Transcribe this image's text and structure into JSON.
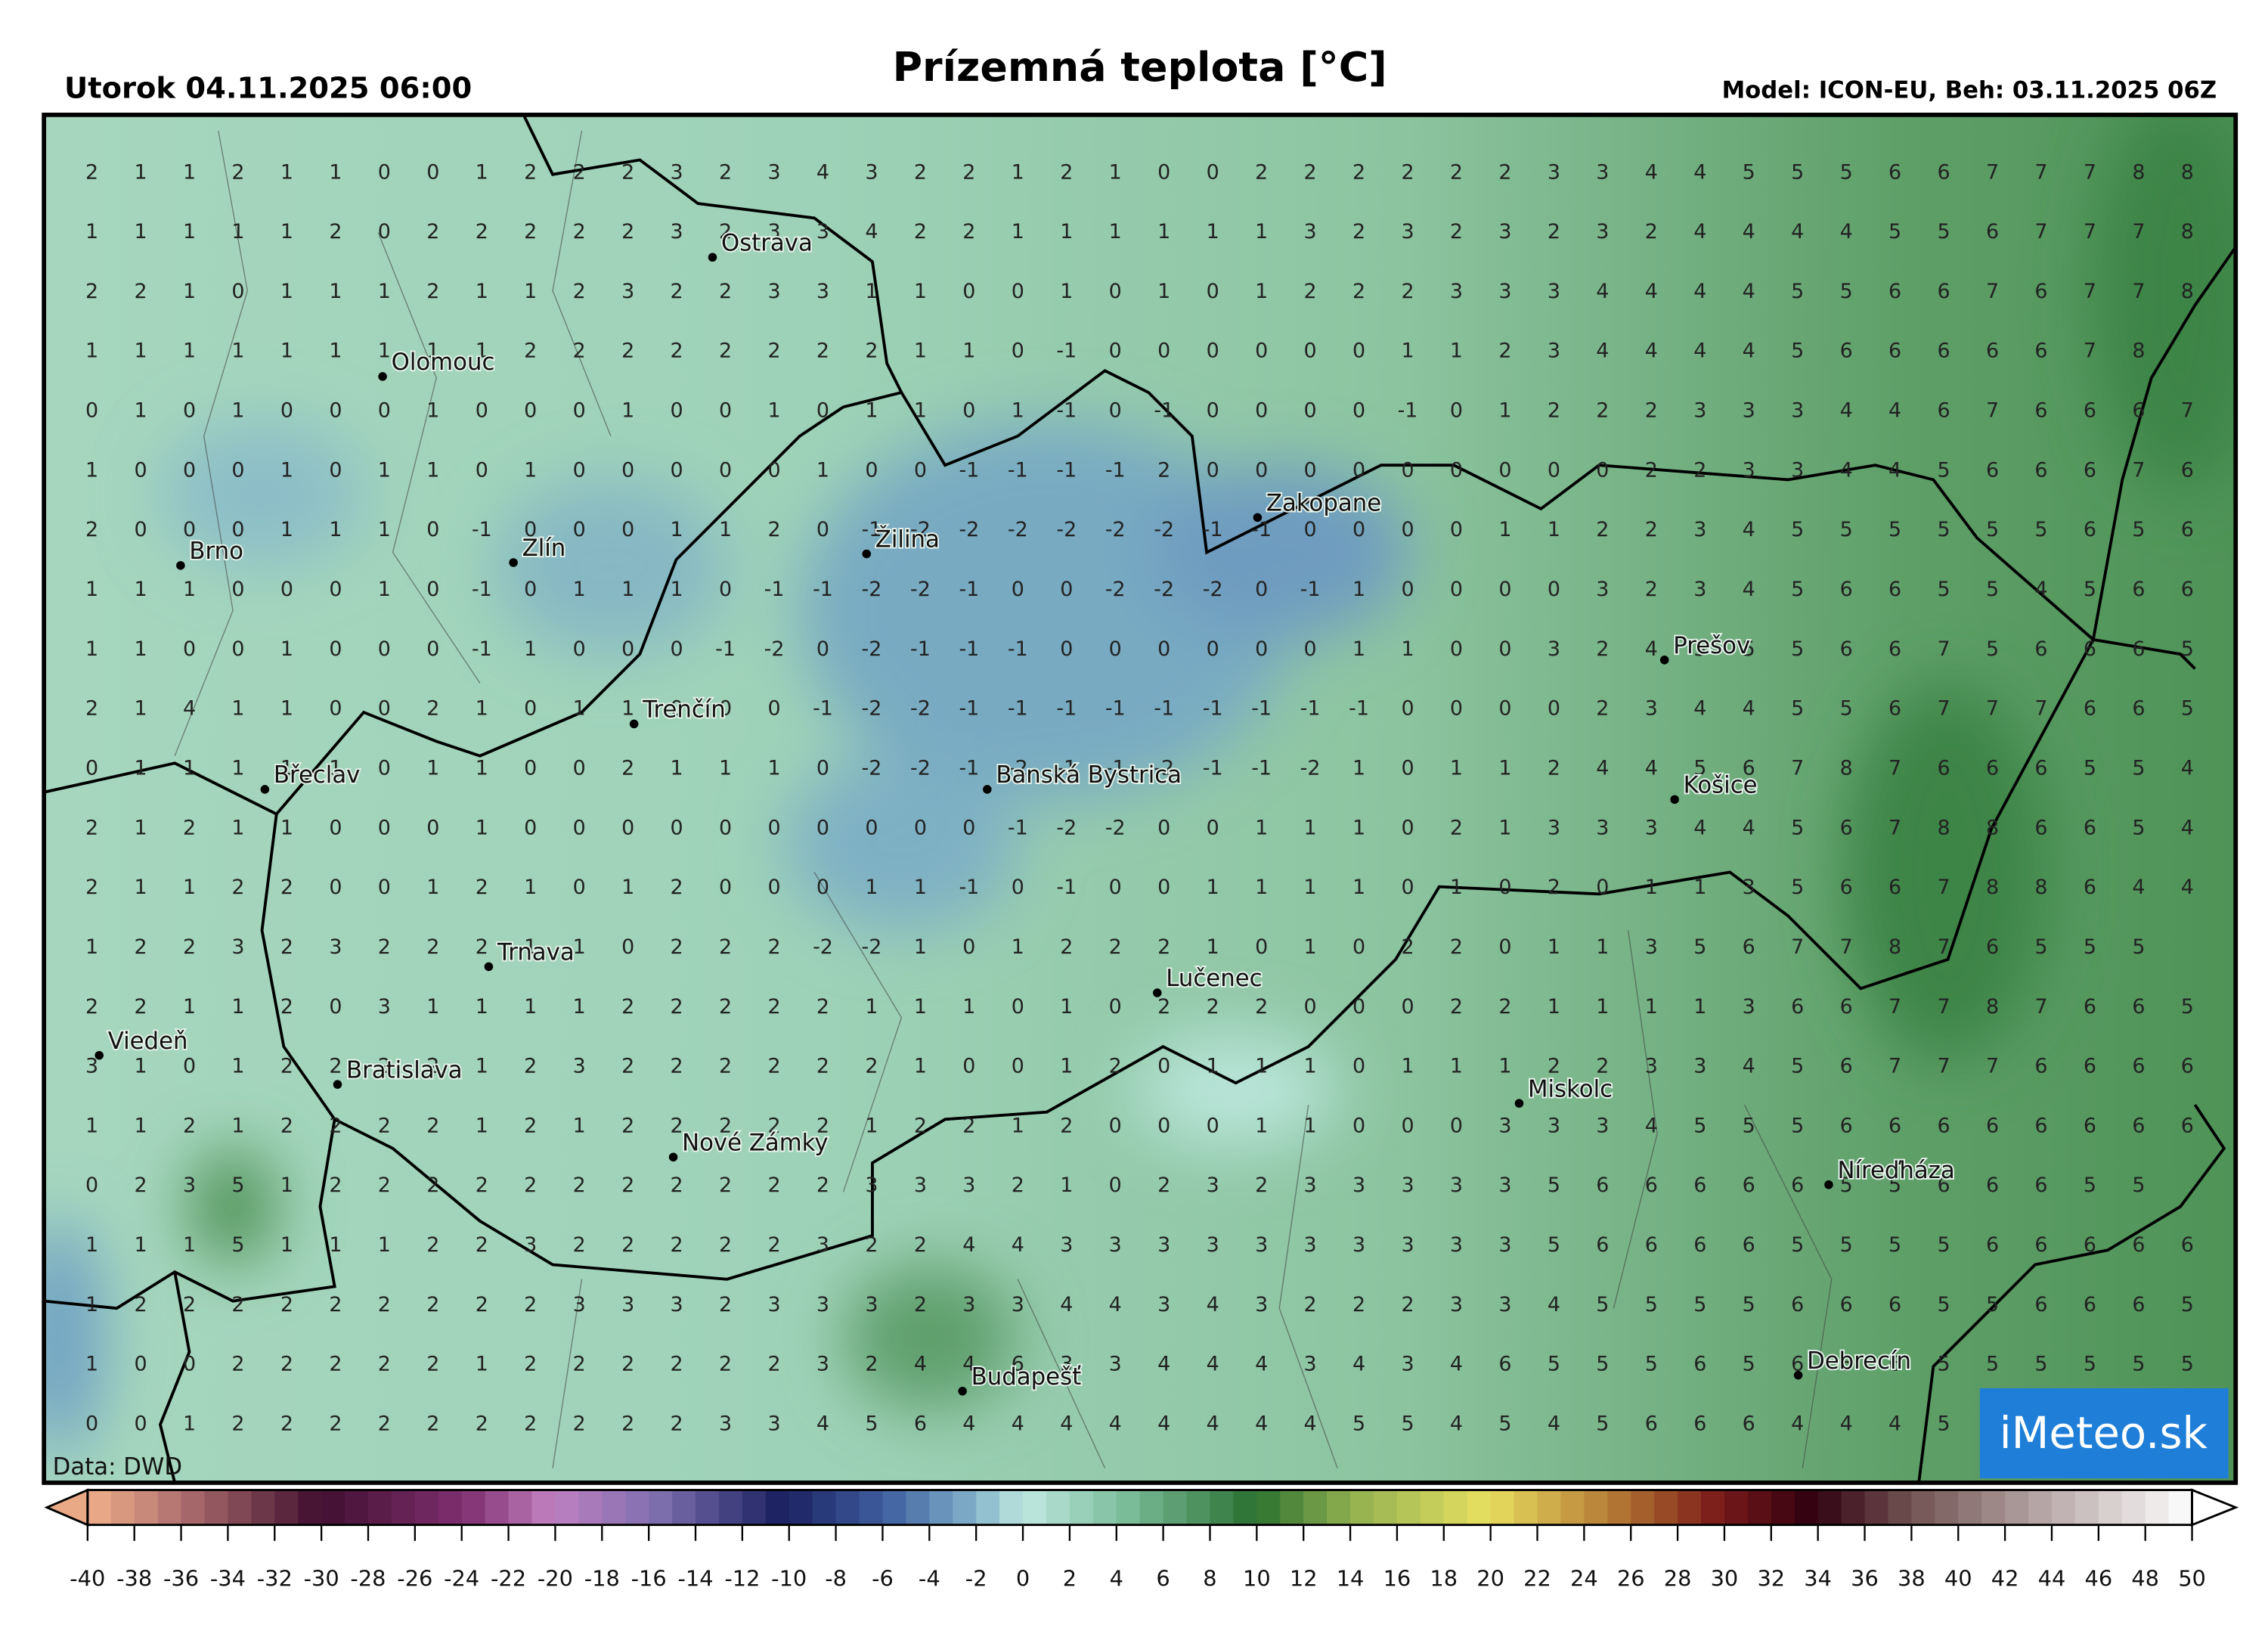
{
  "header": {
    "date": "Utorok 04.11.2025 06:00",
    "title": "Prízemná teplota [°C]",
    "model": "Model: ICON-EU, Beh: 03.11.2025 06Z"
  },
  "source": "Data: DWD",
  "logo": "iMeteo.sk",
  "cities": [
    "Ostrava",
    "Olomouc",
    "Brno",
    "Zlín",
    "Žilina",
    "Zakopane",
    "Prešov",
    "Trenčín",
    "Břeclav",
    "Banská Bystrica",
    "Košice",
    "Trnava",
    "Lučenec",
    "Viedeň",
    "Bratislava",
    "Miskolc",
    "Nové Zámky",
    "Níreďháza",
    "Budapešť",
    "Debrecín"
  ],
  "grid": {
    "rows": [
      [
        2,
        1,
        1,
        2,
        1,
        1,
        0,
        0,
        1,
        2,
        2,
        2,
        3,
        2,
        3,
        4,
        3,
        2,
        2,
        1,
        2,
        1,
        0,
        0,
        2,
        2,
        2,
        2,
        2,
        2,
        3,
        3,
        4,
        4,
        5,
        5,
        5,
        6,
        6,
        7,
        7,
        7,
        8,
        8
      ],
      [
        1,
        1,
        1,
        1,
        1,
        2,
        0,
        2,
        2,
        2,
        2,
        2,
        3,
        2,
        3,
        3,
        4,
        2,
        2,
        1,
        1,
        1,
        1,
        1,
        1,
        3,
        2,
        3,
        2,
        3,
        2,
        3,
        2,
        4,
        4,
        4,
        4,
        5,
        5,
        6,
        7,
        7,
        7,
        8
      ],
      [
        2,
        2,
        1,
        0,
        1,
        1,
        1,
        2,
        1,
        1,
        2,
        3,
        2,
        2,
        3,
        3,
        1,
        1,
        0,
        0,
        1,
        0,
        1,
        0,
        1,
        2,
        2,
        2,
        3,
        3,
        3,
        4,
        4,
        4,
        4,
        5,
        5,
        6,
        6,
        7,
        6,
        7,
        7,
        8
      ],
      [
        1,
        1,
        1,
        1,
        1,
        1,
        1,
        1,
        1,
        2,
        2,
        2,
        2,
        2,
        2,
        2,
        2,
        1,
        1,
        0,
        -1,
        0,
        0,
        0,
        0,
        0,
        0,
        1,
        1,
        2,
        3,
        4,
        4,
        4,
        4,
        5,
        6,
        6,
        6,
        6,
        6,
        7,
        8
      ],
      [
        0,
        1,
        0,
        1,
        0,
        0,
        0,
        1,
        0,
        0,
        0,
        1,
        0,
        0,
        1,
        0,
        1,
        1,
        0,
        1,
        -1,
        0,
        -1,
        0,
        0,
        0,
        0,
        -1,
        0,
        1,
        2,
        2,
        2,
        3,
        3,
        3,
        4,
        4,
        6,
        7,
        6,
        6,
        6,
        7
      ],
      [
        1,
        0,
        0,
        0,
        1,
        0,
        1,
        1,
        0,
        1,
        0,
        0,
        0,
        0,
        0,
        1,
        0,
        0,
        -1,
        -1,
        -1,
        -1,
        2,
        0,
        0,
        0,
        0,
        0,
        0,
        0,
        0,
        0,
        2,
        2,
        3,
        3,
        4,
        4,
        5,
        6,
        6,
        6,
        7,
        6
      ],
      [
        2,
        0,
        0,
        0,
        1,
        1,
        1,
        0,
        -1,
        0,
        0,
        0,
        1,
        1,
        2,
        0,
        -1,
        -2,
        -2,
        -2,
        -2,
        -2,
        -2,
        -1,
        -1,
        0,
        0,
        0,
        0,
        1,
        1,
        2,
        2,
        3,
        4,
        5,
        5,
        5,
        5,
        5,
        5,
        6,
        5,
        6
      ],
      [
        1,
        1,
        1,
        0,
        0,
        0,
        1,
        0,
        -1,
        0,
        1,
        1,
        1,
        0,
        -1,
        -1,
        -2,
        -2,
        -1,
        0,
        0,
        -2,
        -2,
        -2,
        0,
        -1,
        1,
        0,
        0,
        0,
        0,
        3,
        2,
        3,
        4,
        5,
        6,
        6,
        5,
        5,
        4,
        5,
        6,
        6
      ],
      [
        1,
        1,
        0,
        0,
        1,
        0,
        0,
        0,
        -1,
        1,
        0,
        0,
        0,
        -1,
        -2,
        0,
        -2,
        -1,
        -1,
        -1,
        0,
        0,
        0,
        0,
        0,
        0,
        1,
        1,
        0,
        0,
        3,
        2,
        4,
        5,
        5,
        5,
        6,
        6,
        7,
        5,
        6,
        6,
        6,
        5
      ],
      [
        2,
        1,
        4,
        1,
        1,
        0,
        0,
        2,
        1,
        0,
        1,
        1,
        0,
        0,
        0,
        -1,
        -2,
        -2,
        -1,
        -1,
        -1,
        -1,
        -1,
        -1,
        -1,
        -1,
        -1,
        0,
        0,
        0,
        0,
        2,
        3,
        4,
        4,
        5,
        5,
        6,
        7,
        7,
        7,
        6,
        6,
        5
      ],
      [
        0,
        1,
        1,
        1,
        1,
        1,
        0,
        1,
        1,
        0,
        0,
        2,
        1,
        1,
        1,
        0,
        -2,
        -2,
        -1,
        -2,
        -1,
        -1,
        -2,
        -1,
        -1,
        -2,
        1,
        0,
        1,
        1,
        2,
        4,
        4,
        5,
        6,
        7,
        8,
        7,
        6,
        6,
        6,
        5,
        5,
        4
      ],
      [
        2,
        1,
        2,
        1,
        1,
        0,
        0,
        0,
        1,
        0,
        0,
        0,
        0,
        0,
        0,
        0,
        0,
        0,
        0,
        -1,
        -2,
        -2,
        0,
        0,
        1,
        1,
        1,
        0,
        2,
        1,
        3,
        3,
        3,
        4,
        4,
        5,
        6,
        7,
        8,
        8,
        6,
        6,
        5,
        4
      ],
      [
        2,
        1,
        1,
        2,
        2,
        0,
        0,
        1,
        2,
        1,
        0,
        1,
        2,
        0,
        0,
        0,
        1,
        1,
        -1,
        0,
        -1,
        0,
        0,
        1,
        1,
        1,
        1,
        0,
        1,
        0,
        2,
        0,
        1,
        1,
        3,
        5,
        6,
        6,
        7,
        8,
        8,
        6,
        4,
        4
      ],
      [
        1,
        2,
        2,
        3,
        2,
        3,
        2,
        2,
        2,
        1,
        1,
        0,
        2,
        2,
        2,
        -2,
        -2,
        1,
        0,
        1,
        2,
        2,
        2,
        1,
        0,
        1,
        0,
        2,
        2,
        0,
        1,
        1,
        3,
        5,
        6,
        7,
        7,
        8,
        7,
        6,
        5,
        5,
        5
      ],
      [
        2,
        2,
        1,
        1,
        2,
        0,
        3,
        1,
        1,
        1,
        1,
        2,
        2,
        2,
        2,
        2,
        1,
        1,
        1,
        0,
        1,
        0,
        2,
        2,
        2,
        0,
        0,
        0,
        2,
        2,
        1,
        1,
        1,
        1,
        3,
        6,
        6,
        7,
        7,
        8,
        7,
        6,
        6,
        5
      ],
      [
        3,
        1,
        0,
        1,
        2,
        2,
        2,
        2,
        1,
        2,
        3,
        2,
        2,
        2,
        2,
        2,
        2,
        1,
        0,
        0,
        1,
        2,
        0,
        1,
        1,
        1,
        0,
        1,
        1,
        1,
        2,
        2,
        3,
        3,
        4,
        5,
        6,
        7,
        7,
        7,
        6,
        6,
        6,
        6
      ],
      [
        1,
        1,
        2,
        1,
        2,
        2,
        2,
        2,
        1,
        2,
        1,
        2,
        2,
        2,
        2,
        2,
        1,
        2,
        2,
        1,
        2,
        0,
        0,
        0,
        1,
        1,
        0,
        0,
        0,
        3,
        3,
        3,
        4,
        5,
        5,
        5,
        6,
        6,
        6,
        6,
        6,
        6,
        6,
        6
      ],
      [
        0,
        2,
        3,
        5,
        1,
        2,
        2,
        2,
        2,
        2,
        2,
        2,
        2,
        2,
        2,
        2,
        3,
        3,
        3,
        2,
        1,
        0,
        2,
        3,
        2,
        3,
        3,
        3,
        3,
        3,
        5,
        6,
        6,
        6,
        6,
        6,
        5,
        5,
        6,
        6,
        6,
        5,
        5
      ],
      [
        1,
        1,
        1,
        5,
        1,
        1,
        1,
        2,
        2,
        3,
        2,
        2,
        2,
        2,
        2,
        3,
        2,
        2,
        4,
        4,
        3,
        3,
        3,
        3,
        3,
        3,
        3,
        3,
        3,
        3,
        5,
        6,
        6,
        6,
        6,
        5,
        5,
        5,
        5,
        6,
        6,
        6,
        6,
        6
      ],
      [
        1,
        2,
        2,
        2,
        2,
        2,
        2,
        2,
        2,
        2,
        3,
        3,
        3,
        2,
        3,
        3,
        3,
        2,
        3,
        3,
        4,
        4,
        3,
        4,
        3,
        2,
        2,
        2,
        3,
        3,
        4,
        5,
        5,
        5,
        5,
        6,
        6,
        6,
        5,
        5,
        6,
        6,
        6,
        5
      ],
      [
        1,
        0,
        0,
        2,
        2,
        2,
        2,
        2,
        1,
        2,
        2,
        2,
        2,
        2,
        2,
        3,
        2,
        4,
        4,
        6,
        3,
        3,
        4,
        4,
        4,
        3,
        4,
        3,
        4,
        6,
        5,
        5,
        5,
        6,
        5,
        6,
        6,
        6,
        5,
        5,
        5,
        5,
        5,
        5
      ],
      [
        0,
        0,
        1,
        2,
        2,
        2,
        2,
        2,
        2,
        2,
        2,
        2,
        2,
        3,
        3,
        4,
        5,
        6,
        4,
        4,
        4,
        4,
        4,
        4,
        4,
        4,
        5,
        5,
        4,
        5,
        4,
        5,
        6,
        6,
        6,
        4,
        4,
        4,
        5,
        4
      ]
    ]
  },
  "colorbar": {
    "ticks": [
      -40,
      -38,
      -36,
      -34,
      -32,
      -30,
      -28,
      -26,
      -24,
      -22,
      -20,
      -18,
      -16,
      -14,
      -12,
      -10,
      -8,
      -6,
      -4,
      -2,
      0,
      2,
      4,
      6,
      8,
      10,
      12,
      14,
      16,
      18,
      20,
      22,
      24,
      26,
      28,
      30,
      32,
      34,
      36,
      38,
      40,
      42,
      44,
      46,
      48,
      50
    ]
  }
}
